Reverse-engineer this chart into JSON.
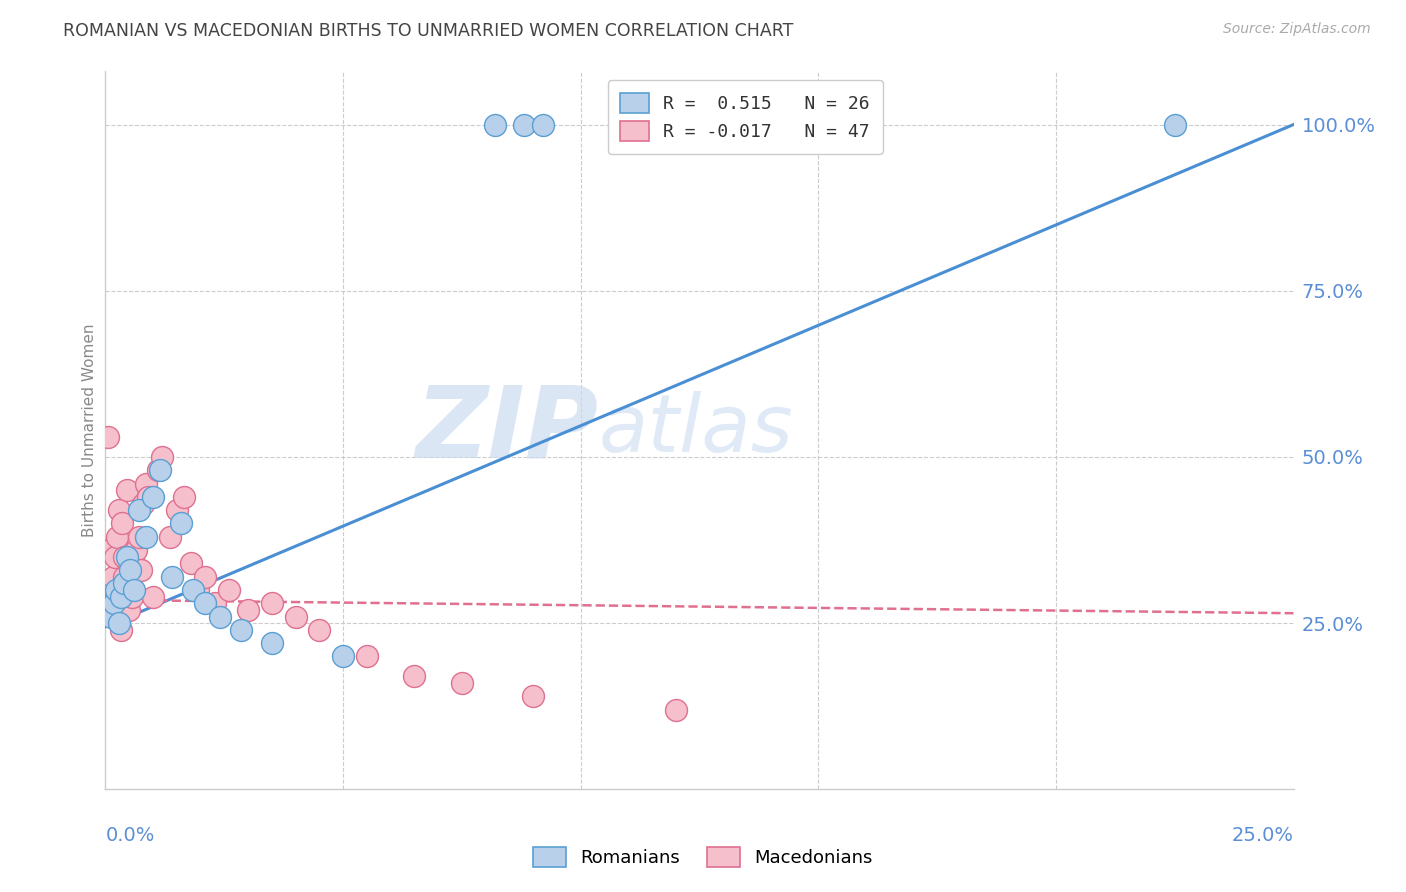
{
  "title": "ROMANIAN VS MACEDONIAN BIRTHS TO UNMARRIED WOMEN CORRELATION CHART",
  "source": "Source: ZipAtlas.com",
  "ylabel": "Births to Unmarried Women",
  "ytick_vals": [
    25.0,
    50.0,
    75.0,
    100.0
  ],
  "xtick_vals": [
    0,
    5,
    10,
    15,
    20,
    25
  ],
  "xlim": [
    0.0,
    25.0
  ],
  "ylim": [
    0.0,
    108.0
  ],
  "legend_line1": "R =  0.515   N = 26",
  "legend_line2": "R = -0.017   N = 47",
  "romanian_face": "#b8d0ea",
  "romanian_edge": "#5a9fd4",
  "macedonian_face": "#f5bfcc",
  "macedonian_edge": "#e07090",
  "trend_rom_color": "#4a8fd4",
  "trend_mac_color": "#e07090",
  "watermark_zip": "ZIP",
  "watermark_atlas": "atlas",
  "watermark_color_zip": "#c5d8ec",
  "watermark_color_atlas": "#c5d8ec",
  "background_color": "#ffffff",
  "grid_color": "#cccccc",
  "axis_label_color": "#5b8fd5",
  "title_color": "#444444",
  "source_color": "#aaaaaa",
  "rom_x": [
    0.08,
    0.12,
    0.18,
    0.22,
    0.28,
    0.32,
    0.38,
    0.45,
    0.52,
    0.6,
    0.7,
    0.85,
    1.0,
    1.15,
    1.4,
    1.6,
    1.85,
    2.1,
    2.4,
    2.85,
    3.5,
    5.0,
    8.2,
    8.8,
    9.2,
    22.5
  ],
  "rom_y": [
    27.0,
    26.0,
    28.0,
    30.0,
    25.0,
    29.0,
    31.0,
    35.0,
    33.0,
    30.0,
    42.0,
    38.0,
    44.0,
    48.0,
    32.0,
    40.0,
    30.0,
    28.0,
    26.0,
    24.0,
    22.0,
    20.0,
    100.0,
    100.0,
    100.0,
    100.0
  ],
  "mac_x": [
    0.05,
    0.08,
    0.1,
    0.12,
    0.15,
    0.18,
    0.2,
    0.22,
    0.25,
    0.28,
    0.3,
    0.33,
    0.35,
    0.38,
    0.4,
    0.42,
    0.45,
    0.48,
    0.5,
    0.55,
    0.6,
    0.65,
    0.7,
    0.75,
    0.8,
    0.85,
    0.9,
    1.0,
    1.1,
    1.2,
    1.35,
    1.5,
    1.65,
    1.8,
    1.95,
    2.1,
    2.3,
    2.6,
    3.0,
    3.5,
    4.0,
    4.5,
    5.5,
    6.5,
    7.5,
    9.0,
    12.0
  ],
  "mac_y": [
    53.0,
    36.0,
    30.0,
    28.0,
    32.0,
    26.0,
    35.0,
    29.0,
    38.0,
    42.0,
    27.0,
    24.0,
    40.0,
    35.0,
    32.0,
    28.0,
    45.0,
    30.0,
    27.0,
    29.0,
    34.0,
    36.0,
    38.0,
    33.0,
    43.0,
    46.0,
    44.0,
    29.0,
    48.0,
    50.0,
    38.0,
    42.0,
    44.0,
    34.0,
    30.0,
    32.0,
    28.0,
    30.0,
    27.0,
    28.0,
    26.0,
    24.0,
    20.0,
    17.0,
    16.0,
    14.0,
    12.0
  ],
  "trend_rom_x0": 0.0,
  "trend_rom_y0": 24.5,
  "trend_rom_x1": 25.0,
  "trend_rom_y1": 100.0,
  "trend_mac_x0": 0.0,
  "trend_mac_y0": 28.5,
  "trend_mac_x1": 25.0,
  "trend_mac_y1": 26.5
}
